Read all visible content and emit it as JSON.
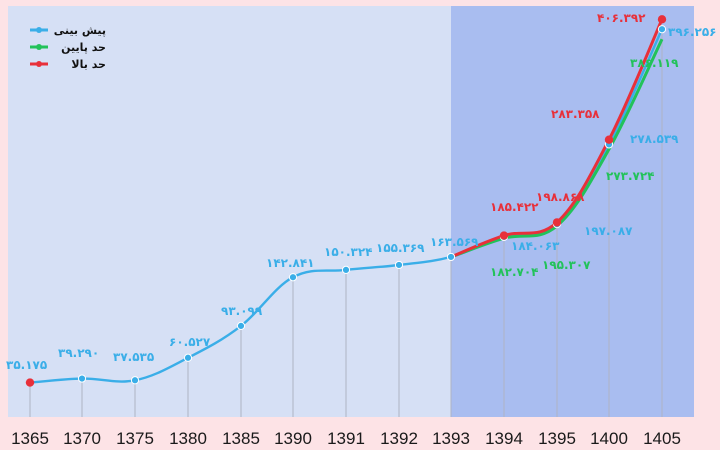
{
  "chart_data": {
    "type": "line",
    "title": "",
    "xlabel": "",
    "ylabel": "",
    "ylim": [
      0,
      420
    ],
    "grid": "vertical drop lines at each category",
    "legend_position": "top-left",
    "categories": [
      "1365",
      "1370",
      "1375",
      "1380",
      "1385",
      "1390",
      "1391",
      "1392",
      "1393",
      "1394",
      "1395",
      "1400",
      "1405"
    ],
    "series": [
      {
        "name": "پیش بینی",
        "color": "#3aaee8",
        "values": [
          35.175,
          39.29,
          37.535,
          60.527,
          93.099,
          142.841,
          150.324,
          155.369,
          163.569,
          184.063,
          197.087,
          278.539,
          396.256
        ],
        "labels": [
          "۳۵.۱۷۵",
          "۳۹.۲۹۰",
          "۳۷.۵۳۵",
          "۶۰.۵۲۷",
          "۹۳.۰۹۹",
          "۱۴۲.۸۴۱",
          "۱۵۰.۳۲۴",
          "۱۵۵.۳۶۹",
          "۱۶۳.۵۶۹",
          "۱۸۴.۰۶۳",
          "۱۹۷.۰۸۷",
          "۲۷۸.۵۳۹",
          "۳۹۶.۲۵۶"
        ]
      },
      {
        "name": "حد پایین",
        "color": "#22c25a",
        "values": [
          null,
          null,
          null,
          null,
          null,
          null,
          null,
          null,
          163.569,
          182.704,
          195.307,
          273.724,
          386.119
        ],
        "labels": [
          "",
          "",
          "",
          "",
          "",
          "",
          "",
          "",
          "",
          "۱۸۲.۷۰۴",
          "۱۹۵.۳۰۷",
          "۲۷۳.۷۲۴",
          "۳۸۶.۱۱۹"
        ]
      },
      {
        "name": "حد بالا",
        "color": "#e8303a",
        "values": [
          35.175,
          null,
          null,
          null,
          null,
          null,
          null,
          null,
          163.569,
          185.422,
          198.868,
          283.358,
          406.392
        ],
        "labels": [
          "",
          "",
          "",
          "",
          "",
          "",
          "",
          "",
          "",
          "۱۸۵.۴۲۲",
          "۱۹۸.۸۶۸",
          "۲۸۳.۳۵۸",
          "۴۰۶.۳۹۲"
        ]
      }
    ]
  },
  "colors": {
    "page_background": "#fde3e6",
    "plot_background": "#d6e0f5",
    "forecast_region": "#a9bdf0",
    "drop_line": "#aeb4c4"
  }
}
